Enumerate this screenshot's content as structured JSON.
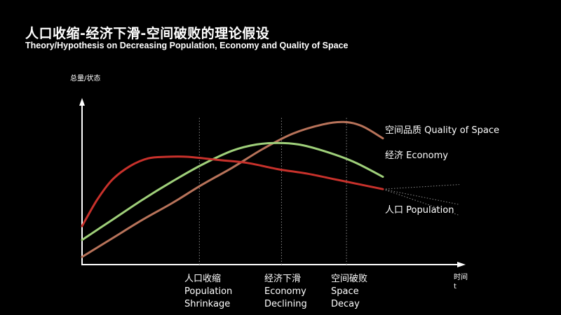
{
  "header": {
    "title": "人口收缩-经济下滑-空间破败的理论假设",
    "subtitle": "Theory/Hypothesis on Decreasing Population, Economy and Quality of Space"
  },
  "colors": {
    "background": "#000000",
    "axis": "#ffffff",
    "population": "#c8312b",
    "economy": "#9fd07a",
    "space": "#b8735a",
    "guide": "#8a8a8a"
  },
  "chart_data": {
    "type": "line",
    "ylabel": "总量/状态",
    "xlabel": [
      "时间",
      "t"
    ],
    "grid": false,
    "milestones": [
      {
        "t": 0.39,
        "lines": [
          "人口收缩",
          "Population",
          "Shrinkage"
        ]
      },
      {
        "t": 0.663,
        "lines": [
          "经济下滑",
          "Economy",
          "Declining"
        ]
      },
      {
        "t": 0.879,
        "lines": [
          "空间破败",
          "Space",
          "Decay"
        ]
      }
    ],
    "series": [
      {
        "name": "空间品质 Quality of Space",
        "color": "#b8735a",
        "points": [
          [
            0,
            0.05
          ],
          [
            0.1,
            0.17
          ],
          [
            0.2,
            0.29
          ],
          [
            0.3,
            0.4
          ],
          [
            0.4,
            0.52
          ],
          [
            0.5,
            0.63
          ],
          [
            0.6,
            0.75
          ],
          [
            0.7,
            0.85
          ],
          [
            0.8,
            0.91
          ],
          [
            0.87,
            0.926
          ],
          [
            0.93,
            0.9
          ],
          [
            1.0,
            0.82
          ]
        ]
      },
      {
        "name": "经济 Economy",
        "color": "#9fd07a",
        "points": [
          [
            0,
            0.16
          ],
          [
            0.1,
            0.29
          ],
          [
            0.2,
            0.42
          ],
          [
            0.3,
            0.54
          ],
          [
            0.4,
            0.65
          ],
          [
            0.5,
            0.74
          ],
          [
            0.58,
            0.78
          ],
          [
            0.65,
            0.79
          ],
          [
            0.72,
            0.78
          ],
          [
            0.8,
            0.74
          ],
          [
            0.9,
            0.67
          ],
          [
            1.0,
            0.57
          ]
        ]
      },
      {
        "name": "人口 Population",
        "color": "#c8312b",
        "points": [
          [
            0,
            0.25
          ],
          [
            0.05,
            0.42
          ],
          [
            0.1,
            0.55
          ],
          [
            0.16,
            0.64
          ],
          [
            0.22,
            0.69
          ],
          [
            0.28,
            0.7
          ],
          [
            0.35,
            0.7
          ],
          [
            0.45,
            0.68
          ],
          [
            0.55,
            0.66
          ],
          [
            0.65,
            0.62
          ],
          [
            0.75,
            0.59
          ],
          [
            0.85,
            0.55
          ],
          [
            0.95,
            0.51
          ],
          [
            1.0,
            0.49
          ]
        ]
      }
    ],
    "projections": [
      {
        "from": 1.0,
        "y0": 0.49,
        "y1": 0.52
      },
      {
        "from": 1.0,
        "y0": 0.49,
        "y1": 0.39
      },
      {
        "from": 1.0,
        "y0": 0.49,
        "y1": 0.32
      }
    ]
  }
}
